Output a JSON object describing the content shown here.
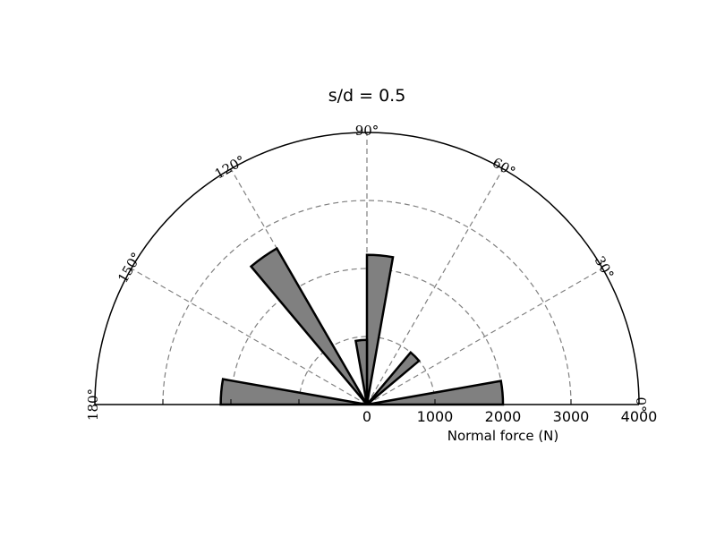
{
  "chart_data": {
    "type": "polar-bar",
    "title": "s/d = 0.5",
    "xlabel": "Normal force (N)",
    "rlim": [
      0,
      4000
    ],
    "theta_range_deg": [
      0,
      180
    ],
    "radial_ticks": [
      0,
      1000,
      2000,
      3000,
      4000
    ],
    "radial_tick_labels": [
      "0",
      "1000",
      "2000",
      "3000",
      "4000"
    ],
    "angle_ticks_deg": [
      0,
      30,
      60,
      90,
      120,
      150,
      180
    ],
    "angle_tick_labels": [
      "0°",
      "30°",
      "60°",
      "90°",
      "120°",
      "150°",
      "180°"
    ],
    "grid": true,
    "bar_color": "#808080",
    "edge_color": "#000000",
    "bars": [
      {
        "theta_start_deg": 0,
        "theta_end_deg": 10,
        "value": 2000
      },
      {
        "theta_start_deg": 40,
        "theta_end_deg": 50,
        "value": 1000
      },
      {
        "theta_start_deg": 80,
        "theta_end_deg": 90,
        "value": 2200
      },
      {
        "theta_start_deg": 90,
        "theta_end_deg": 100,
        "value": 950
      },
      {
        "theta_start_deg": 120,
        "theta_end_deg": 130,
        "value": 2650
      },
      {
        "theta_start_deg": 170,
        "theta_end_deg": 180,
        "value": 2150
      }
    ]
  }
}
